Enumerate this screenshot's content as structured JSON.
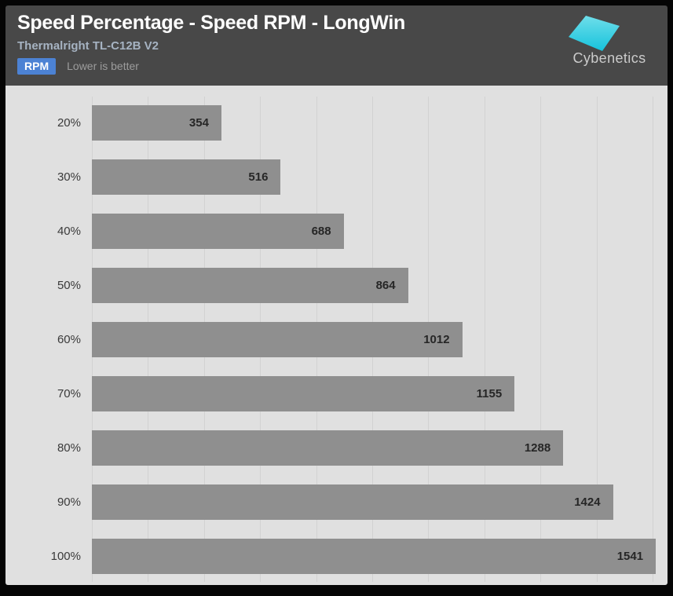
{
  "header": {
    "title": "Speed Percentage - Speed RPM - LongWin",
    "subtitle": "Thermalright TL-C12B V2",
    "unit_badge": "RPM",
    "note": "Lower is better",
    "logo_text": "Cybenetics"
  },
  "colors": {
    "header_bg": "#484848",
    "badge_bg": "#4c82d4",
    "chart_bg": "#e0e0e0",
    "gridline": "#d2d2d2",
    "bar": "#8f8f8f",
    "value_label": "#262626",
    "category_label": "#3a3a3a",
    "subtitle_text": "#a6b3c2",
    "logo_cyan_light": "#6fdeea",
    "logo_cyan_dark": "#16c3dc"
  },
  "chart_data": {
    "type": "bar",
    "orientation": "horizontal",
    "title": "Speed Percentage - Speed RPM - LongWin",
    "subtitle": "Thermalright TL-C12B V2",
    "unit": "RPM",
    "note": "Lower is better",
    "categories": [
      "20%",
      "30%",
      "40%",
      "50%",
      "60%",
      "70%",
      "80%",
      "90%",
      "100%"
    ],
    "values": [
      354,
      516,
      688,
      864,
      1012,
      1155,
      1288,
      1424,
      1541
    ],
    "xlabel": "",
    "ylabel": "",
    "xlim": [
      0,
      1573
    ],
    "grid": true,
    "gridline_count": 11,
    "value_labels": true,
    "legend": false
  }
}
